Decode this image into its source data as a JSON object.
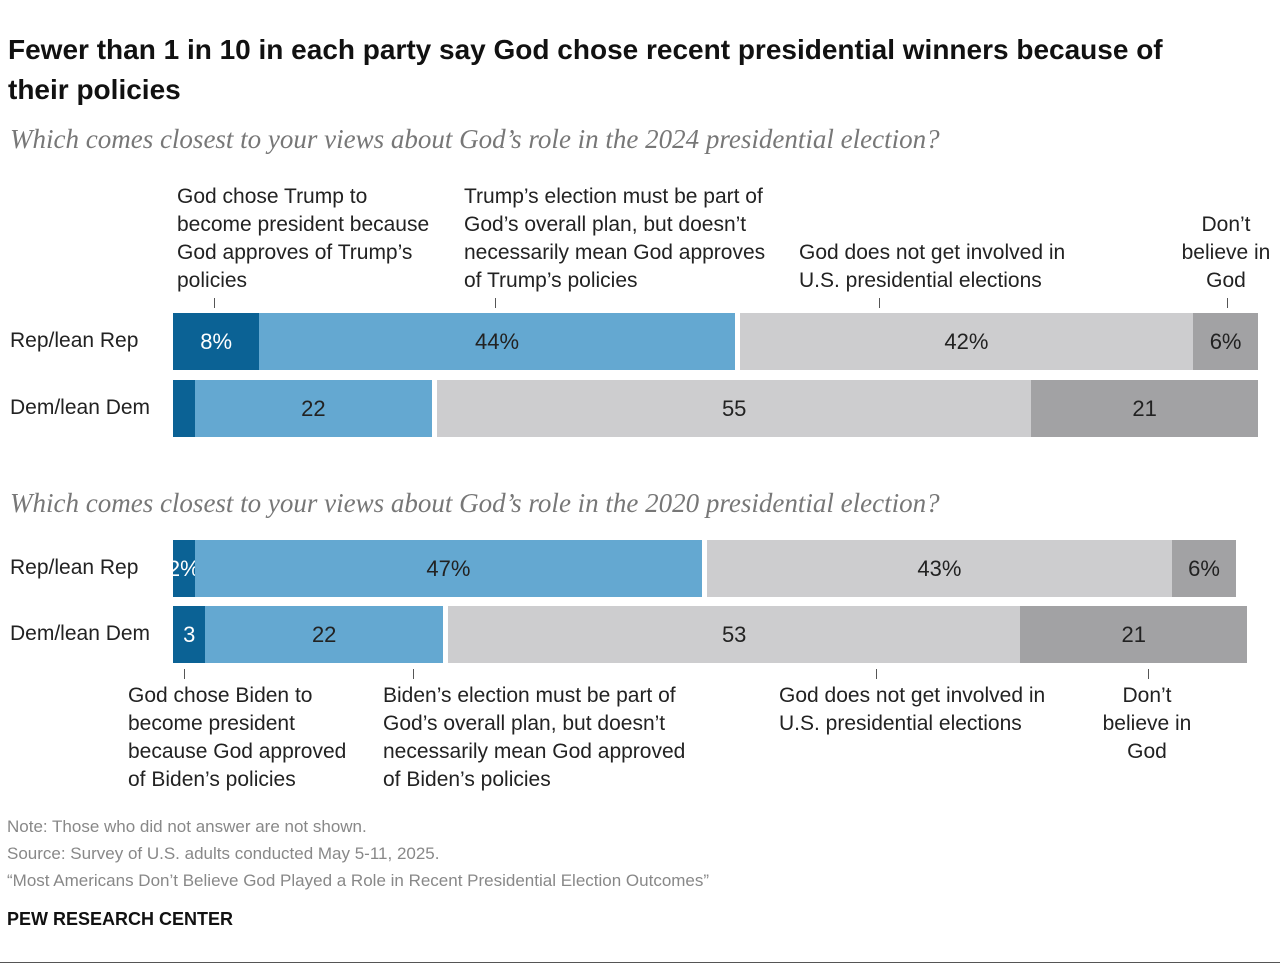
{
  "title": "Fewer than 1 in 10 in each party say God chose recent presidential winners because of their policies",
  "chart_data": [
    {
      "type": "stacked_bar",
      "subtitle": "Which comes closest to your views about God’s role in the 2024 presidential election?",
      "categories": [
        "Rep/lean Rep",
        "Dem/lean Dem"
      ],
      "series": [
        {
          "name": "God chose Trump to become president because God approves of Trump’s policies",
          "color": "#0b6295",
          "values": [
            8,
            2
          ],
          "value_labels": [
            "8%",
            null
          ]
        },
        {
          "name": "Trump’s election must be part of God’s overall plan, but doesn’t necessarily mean God approves of Trump’s policies",
          "color": "#64a8d1",
          "values": [
            44,
            22
          ],
          "value_labels": [
            "44%",
            "22"
          ]
        },
        {
          "name": "God does not get involved in U.S. presidential elections",
          "color": "#cdcdcf",
          "values": [
            42,
            55
          ],
          "value_labels": [
            "42%",
            "55"
          ]
        },
        {
          "name": "Don’t believe in God",
          "color": "#a2a2a4",
          "values": [
            6,
            21
          ],
          "value_labels": [
            "6%",
            "21"
          ]
        }
      ]
    },
    {
      "type": "stacked_bar",
      "subtitle": "Which comes closest to your views about God’s role in the 2020 presidential election?",
      "categories": [
        "Rep/lean Rep",
        "Dem/lean Dem"
      ],
      "series": [
        {
          "name": "God chose Biden to become president because God approved of Biden’s policies",
          "color": "#0b6295",
          "values": [
            2,
            3
          ],
          "value_labels": [
            "2%",
            "3"
          ]
        },
        {
          "name": "Biden’s election must be part of God’s overall plan, but doesn’t necessarily mean God approved of Biden’s policies",
          "color": "#64a8d1",
          "values": [
            47,
            22
          ],
          "value_labels": [
            "47%",
            "22"
          ]
        },
        {
          "name": "God does not get involved in U.S. presidential elections",
          "color": "#cdcdcf",
          "values": [
            43,
            53
          ],
          "value_labels": [
            "43%",
            "53"
          ]
        },
        {
          "name": "Don’t believe in God",
          "color": "#a2a2a4",
          "values": [
            6,
            21
          ],
          "value_labels": [
            "6%",
            "21"
          ]
        }
      ]
    }
  ],
  "footer": {
    "note": "Note: Those who did not answer are not shown.",
    "source": "Source: Survey of U.S. adults conducted May 5-11, 2025.",
    "report": "“Most Americans Don’t Believe God Played a Role in Recent Presidential Election Outcomes”",
    "org": "PEW RESEARCH CENTER"
  }
}
